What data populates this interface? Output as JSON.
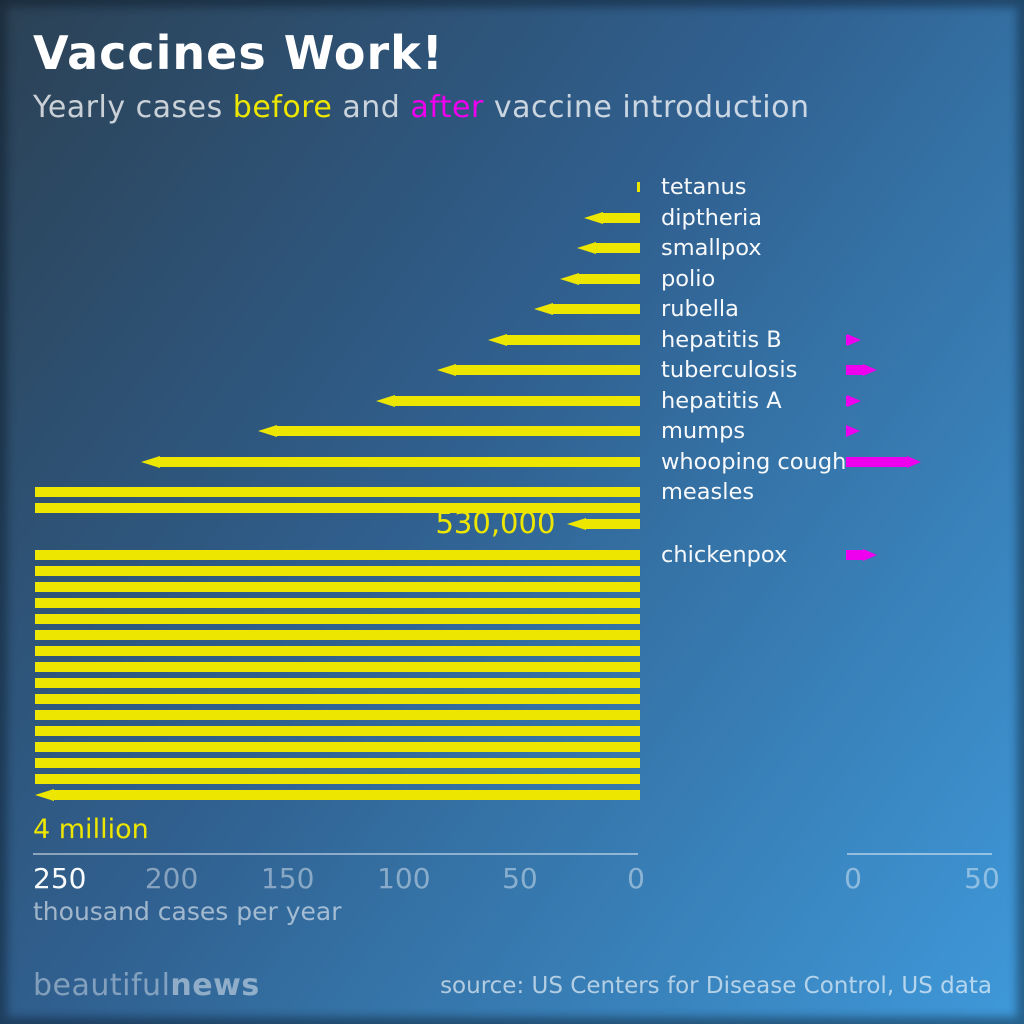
{
  "header": {
    "title": "Vaccines Work!",
    "subtitle_parts": {
      "pre": "Yearly cases ",
      "before": "before",
      "mid": " and ",
      "after": "after",
      "post": " vaccine introduction"
    }
  },
  "colors": {
    "before": "#ede600",
    "after": "#ee00ee"
  },
  "chart_data": {
    "type": "bar",
    "orientation": "horizontal",
    "title": "Vaccines Work!",
    "subtitle": "Yearly cases before and after vaccine introduction",
    "unit": "thousand cases per year",
    "categories": [
      "tetanus",
      "diptheria",
      "smallpox",
      "polio",
      "rubella",
      "hepatitis B",
      "tuberculosis",
      "hepatitis A",
      "mumps",
      "whooping cough",
      "measles",
      "chickenpox"
    ],
    "series": [
      {
        "name": "before vaccine",
        "color": "#ede600",
        "values_thousands": [
          1.2,
          23,
          26,
          33,
          44,
          63,
          84,
          109,
          158,
          206,
          530,
          4000
        ]
      },
      {
        "name": "after vaccine",
        "color": "#ee00ee",
        "values_thousands": [
          null,
          null,
          null,
          null,
          null,
          6,
          12,
          6,
          5,
          29,
          null,
          12
        ]
      }
    ],
    "annotations": [
      {
        "category": "measles",
        "text": "530,000",
        "position": "end-of-bar"
      },
      {
        "category": "chickenpox",
        "text": "4 million",
        "position": "below-bar"
      }
    ],
    "left_axis": {
      "ticks": [
        "250",
        "200",
        "150",
        "100",
        "50",
        "0"
      ],
      "label": "thousand cases per year",
      "range": [
        250,
        0
      ],
      "wrap_at": 250,
      "grid": false
    },
    "right_axis": {
      "ticks": [
        "0",
        "50"
      ],
      "range": [
        0,
        50
      ],
      "grid": false
    }
  },
  "footer": {
    "brand_light": "beautiful",
    "brand_bold": "news",
    "source": "source: US Centers for Disease Control, US data"
  }
}
